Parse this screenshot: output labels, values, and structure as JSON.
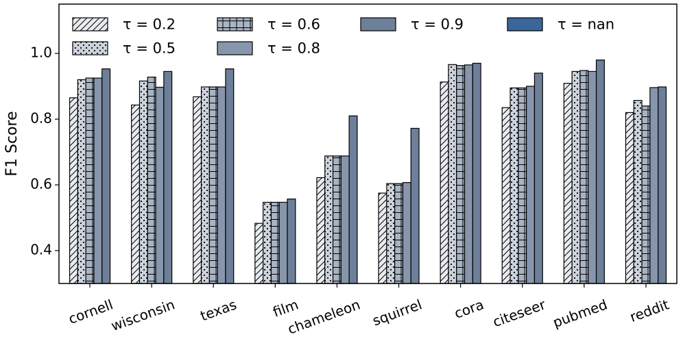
{
  "chart_data": {
    "type": "bar",
    "title": "",
    "xlabel": "",
    "ylabel": "F1 Score",
    "ylim": [
      0.3,
      1.15
    ],
    "yticks": [
      "0.4",
      "0.6",
      "0.8",
      "1.0"
    ],
    "grid": false,
    "legend_position": "top",
    "categories": [
      "cornell",
      "wisconsin",
      "texas",
      "film",
      "chameleon",
      "squirrel",
      "cora",
      "citeseer",
      "pubmed",
      "reddit"
    ],
    "series": [
      {
        "name": "τ = 0.2",
        "fill": "#e8ebef",
        "hatch": "diagonal",
        "values": [
          0.865,
          0.843,
          0.868,
          0.483,
          0.622,
          0.575,
          0.913,
          0.835,
          0.909,
          0.82
        ]
      },
      {
        "name": "τ = 0.5",
        "fill": "#cdd3dc",
        "hatch": "dots",
        "values": [
          0.92,
          0.916,
          0.898,
          0.547,
          0.688,
          0.604,
          0.966,
          0.895,
          0.945,
          0.857
        ]
      },
      {
        "name": "τ = 0.6",
        "fill": "#a8b4c4",
        "hatch": "grid",
        "values": [
          0.925,
          0.928,
          0.898,
          0.547,
          0.688,
          0.604,
          0.963,
          0.895,
          0.948,
          0.84
        ]
      },
      {
        "name": "τ = 0.8",
        "fill": "#8796ac",
        "hatch": "none",
        "values": [
          0.925,
          0.897,
          0.898,
          0.547,
          0.688,
          0.607,
          0.965,
          0.9,
          0.945,
          0.896
        ]
      },
      {
        "name": "τ = 0.9",
        "fill": "#6d7f99",
        "hatch": "none",
        "values": [
          0.953,
          0.945,
          0.953,
          0.557,
          0.81,
          0.772,
          0.97,
          0.94,
          0.98,
          0.898
        ]
      },
      {
        "name": "τ = nan",
        "fill": "#3a6699",
        "hatch": "none",
        "legend_only": true,
        "values": [
          null,
          null,
          null,
          null,
          null,
          null,
          null,
          null,
          null,
          null
        ]
      }
    ],
    "legend_layout": [
      [
        "τ = 0.2",
        "τ = 0.6",
        "τ = 0.9",
        "τ = nan"
      ],
      [
        "τ = 0.5",
        "τ = 0.8"
      ]
    ]
  }
}
